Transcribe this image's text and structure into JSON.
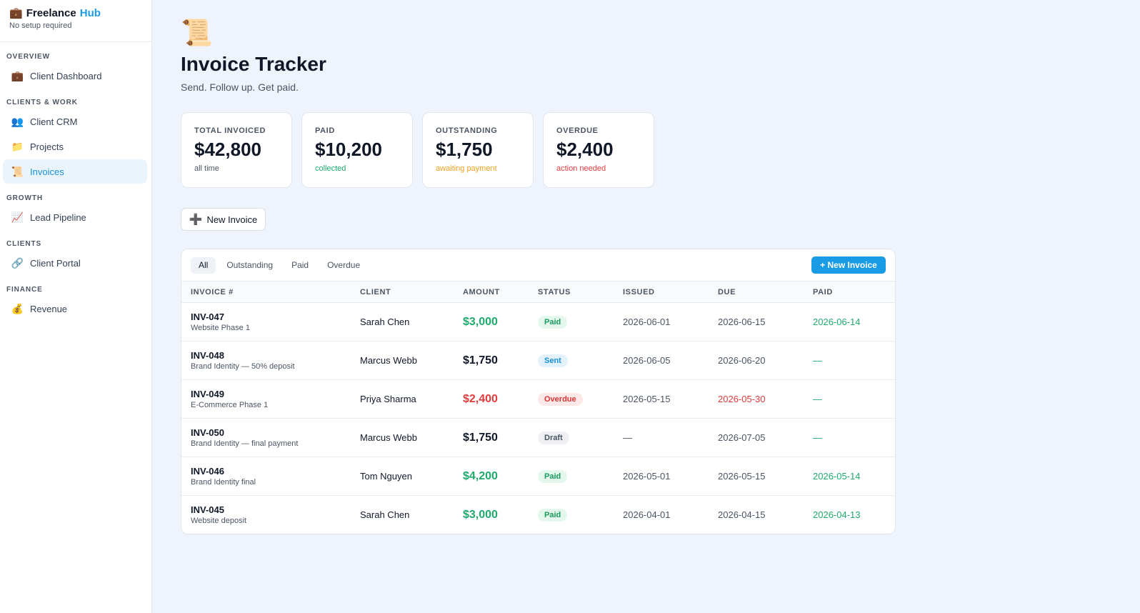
{
  "brand": {
    "icon": "briefcase-icon",
    "name": "Freelance",
    "accent": "Hub",
    "subtitle": "No setup required"
  },
  "sidebar": {
    "sections": [
      {
        "title": "OVERVIEW",
        "items": [
          {
            "label": "Client Dashboard",
            "icon": "briefcase-icon",
            "glyph": "💼"
          }
        ]
      },
      {
        "title": "CLIENTS & WORK",
        "items": [
          {
            "label": "Client CRM",
            "icon": "people-icon",
            "glyph": "👥"
          },
          {
            "label": "Projects",
            "icon": "folder-icon",
            "glyph": "📁"
          },
          {
            "label": "Invoices",
            "icon": "scroll-icon",
            "glyph": "📜",
            "active": true
          }
        ]
      },
      {
        "title": "GROWTH",
        "items": [
          {
            "label": "Lead Pipeline",
            "icon": "chart-icon",
            "glyph": "📈"
          }
        ]
      },
      {
        "title": "CLIENTS",
        "items": [
          {
            "label": "Client Portal",
            "icon": "link-icon",
            "glyph": "🔗"
          }
        ]
      },
      {
        "title": "FINANCE",
        "items": [
          {
            "label": "Revenue",
            "icon": "money-bag-icon",
            "glyph": "💰"
          }
        ]
      }
    ]
  },
  "page": {
    "icon": "scroll-icon",
    "title": "Invoice Tracker",
    "subtitle": "Send. Follow up. Get paid."
  },
  "stats": [
    {
      "label": "TOTAL INVOICED",
      "value": "$42,800",
      "note": "all time",
      "tone": "gray"
    },
    {
      "label": "PAID",
      "value": "$10,200",
      "note": "collected",
      "tone": "green"
    },
    {
      "label": "OUTSTANDING",
      "value": "$1,750",
      "note": "awaiting payment",
      "tone": "orange"
    },
    {
      "label": "OVERDUE",
      "value": "$2,400",
      "note": "action needed",
      "tone": "red"
    }
  ],
  "actions": {
    "new_invoice": "New Invoice",
    "new_invoice_primary": "+ New Invoice"
  },
  "filters": [
    "All",
    "Outstanding",
    "Paid",
    "Overdue"
  ],
  "table": {
    "columns": [
      "INVOICE #",
      "CLIENT",
      "AMOUNT",
      "STATUS",
      "ISSUED",
      "DUE",
      "PAID"
    ],
    "rows": [
      {
        "id": "INV-047",
        "desc": "Website Phase 1",
        "client": "Sarah Chen",
        "amount": "$3,000",
        "status": "Paid",
        "issued": "2026-06-01",
        "due": "2026-06-15",
        "paid": "2026-06-14"
      },
      {
        "id": "INV-048",
        "desc": "Brand Identity — 50% deposit",
        "client": "Marcus Webb",
        "amount": "$1,750",
        "status": "Sent",
        "issued": "2026-06-05",
        "due": "2026-06-20",
        "paid": "—"
      },
      {
        "id": "INV-049",
        "desc": "E-Commerce Phase 1",
        "client": "Priya Sharma",
        "amount": "$2,400",
        "status": "Overdue",
        "issued": "2026-05-15",
        "due": "2026-05-30",
        "paid": "—"
      },
      {
        "id": "INV-050",
        "desc": "Brand Identity — final payment",
        "client": "Marcus Webb",
        "amount": "$1,750",
        "status": "Draft",
        "issued": "—",
        "due": "2026-07-05",
        "paid": "—"
      },
      {
        "id": "INV-046",
        "desc": "Brand Identity final",
        "client": "Tom Nguyen",
        "amount": "$4,200",
        "status": "Paid",
        "issued": "2026-05-01",
        "due": "2026-05-15",
        "paid": "2026-05-14"
      },
      {
        "id": "INV-045",
        "desc": "Website deposit",
        "client": "Sarah Chen",
        "amount": "$3,000",
        "status": "Paid",
        "issued": "2026-04-01",
        "due": "2026-04-15",
        "paid": "2026-04-13"
      }
    ]
  },
  "colors": {
    "accent": "#1a9be6",
    "paid": "#1faa6c",
    "overdue": "#e23b3b",
    "outstanding": "#f0a020"
  }
}
